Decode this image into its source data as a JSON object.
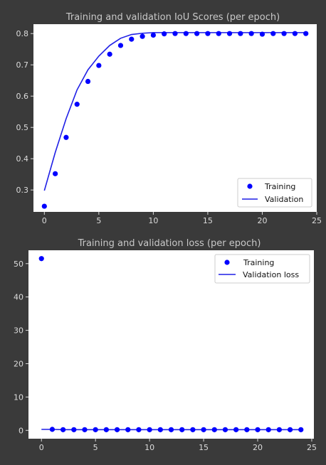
{
  "chart_data": [
    {
      "type": "line",
      "title": "Training and validation IoU Scores (per epoch)",
      "xlabel": "",
      "ylabel": "",
      "xlim": [
        -1,
        25
      ],
      "ylim": [
        0.23,
        0.83
      ],
      "x_ticks": [
        0,
        5,
        10,
        15,
        20,
        25
      ],
      "y_ticks": [
        0.3,
        0.4,
        0.5,
        0.6,
        0.7,
        0.8
      ],
      "legend": "lower-right",
      "grid": false,
      "series": [
        {
          "name": "Training",
          "kind": "scatter",
          "color": "#0000ff",
          "x": [
            0,
            1,
            2,
            3,
            4,
            5,
            6,
            7,
            8,
            9,
            10,
            11,
            12,
            13,
            14,
            15,
            16,
            17,
            18,
            19,
            20,
            21,
            22,
            23,
            24
          ],
          "y": [
            0.248,
            0.352,
            0.468,
            0.574,
            0.647,
            0.698,
            0.734,
            0.762,
            0.782,
            0.791,
            0.795,
            0.799,
            0.8,
            0.8,
            0.8,
            0.8,
            0.8,
            0.8,
            0.8,
            0.8,
            0.798,
            0.8,
            0.8,
            0.8,
            0.8
          ]
        },
        {
          "name": "Validation",
          "kind": "line",
          "color": "#1f1fe6",
          "x": [
            0,
            1,
            2,
            3,
            4,
            5,
            6,
            7,
            8,
            9,
            10,
            11,
            12,
            13,
            14,
            15,
            16,
            17,
            18,
            19,
            20,
            21,
            22,
            23,
            24
          ],
          "y": [
            0.298,
            0.42,
            0.528,
            0.62,
            0.684,
            0.728,
            0.762,
            0.785,
            0.797,
            0.801,
            0.803,
            0.803,
            0.803,
            0.803,
            0.803,
            0.803,
            0.803,
            0.803,
            0.803,
            0.803,
            0.803,
            0.803,
            0.803,
            0.803,
            0.803
          ]
        }
      ]
    },
    {
      "type": "line",
      "title": "Training and validation loss (per epoch)",
      "xlabel": "",
      "ylabel": "",
      "xlim": [
        -1.2,
        25.2
      ],
      "ylim": [
        -2.5,
        54
      ],
      "x_ticks": [
        0,
        5,
        10,
        15,
        20,
        25
      ],
      "y_ticks": [
        0,
        10,
        20,
        30,
        40,
        50
      ],
      "legend": "top-right",
      "grid": false,
      "series": [
        {
          "name": "Training",
          "kind": "scatter",
          "color": "#0000ff",
          "x": [
            0,
            1,
            2,
            3,
            4,
            5,
            6,
            7,
            8,
            9,
            10,
            11,
            12,
            13,
            14,
            15,
            16,
            17,
            18,
            19,
            20,
            21,
            22,
            23,
            24
          ],
          "y": [
            51.5,
            0.3,
            0.2,
            0.2,
            0.2,
            0.2,
            0.2,
            0.2,
            0.2,
            0.2,
            0.2,
            0.2,
            0.2,
            0.2,
            0.2,
            0.2,
            0.2,
            0.2,
            0.2,
            0.2,
            0.2,
            0.2,
            0.2,
            0.2,
            0.2
          ]
        },
        {
          "name": "Validation loss",
          "kind": "line",
          "color": "#1f1fe6",
          "x": [
            0,
            1,
            2,
            3,
            4,
            5,
            6,
            7,
            8,
            9,
            10,
            11,
            12,
            13,
            14,
            15,
            16,
            17,
            18,
            19,
            20,
            21,
            22,
            23,
            24
          ],
          "y": [
            0.3,
            0.3,
            0.2,
            0.2,
            0.2,
            0.2,
            0.2,
            0.2,
            0.2,
            0.2,
            0.2,
            0.2,
            0.2,
            0.2,
            0.2,
            0.2,
            0.2,
            0.2,
            0.2,
            0.2,
            0.2,
            0.2,
            0.2,
            0.2,
            0.2
          ]
        }
      ]
    }
  ]
}
